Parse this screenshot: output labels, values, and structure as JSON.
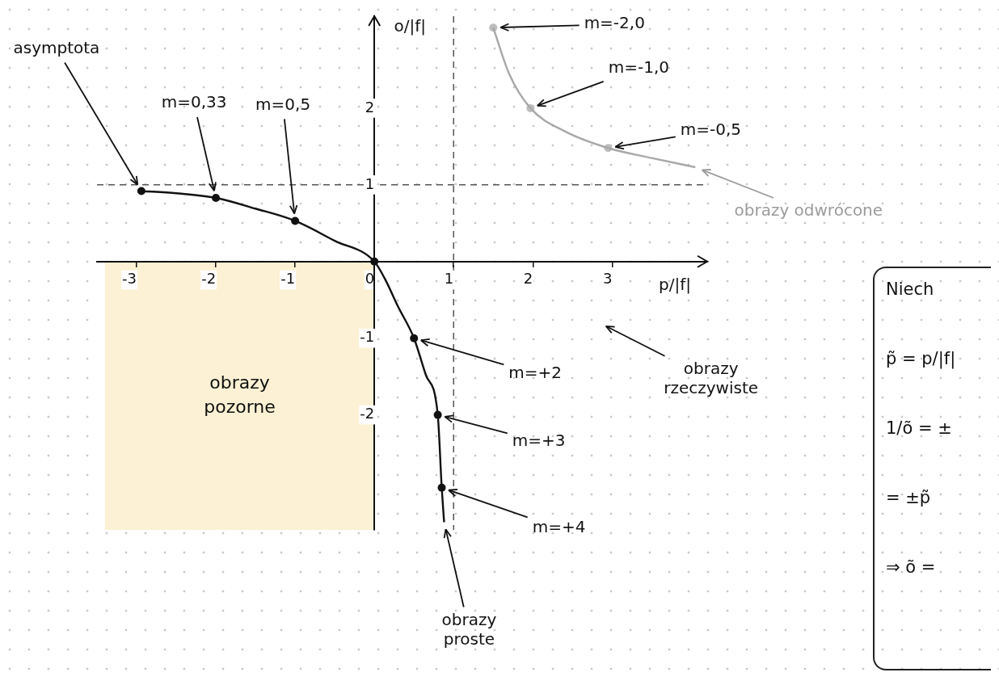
{
  "chart_data": {
    "type": "line",
    "x_label": "p/|f|",
    "y_label": "o/|f|",
    "xlim": [
      -3.5,
      4.2
    ],
    "ylim": [
      -3.5,
      3.2
    ],
    "xticks": [
      -3,
      -2,
      -1,
      0,
      1,
      2,
      3
    ],
    "yticks": [
      -2,
      -1,
      1,
      2
    ],
    "grid": false,
    "series": [
      {
        "type": "line",
        "x": [
          -2.94,
          -2.5,
          -2,
          -1.5,
          -1,
          -0.5,
          0,
          0.13,
          0.3,
          0.5,
          0.65,
          0.8,
          0.85,
          0.88
        ],
        "values": [
          0.92,
          0.89,
          0.83,
          0.69,
          0.53,
          0.27,
          0,
          -0.22,
          -0.59,
          -1.0,
          -1.48,
          -2.0,
          -2.95,
          -3.4
        ],
        "color": "#111111",
        "marker": "none",
        "line_style": "solid"
      },
      {
        "type": "line",
        "x": [
          1.5,
          1.7,
          1.97,
          2.4,
          2.95,
          3.5,
          4.05
        ],
        "values": [
          3.05,
          2.45,
          2.0,
          1.7,
          1.48,
          1.35,
          1.23
        ],
        "color": "#a8a8a8",
        "marker": "none",
        "line_style": "solid"
      },
      {
        "type": "scatter",
        "x": [
          -2.94,
          -2,
          -1,
          0,
          0.5,
          0.8,
          0.85
        ],
        "values": [
          0.92,
          0.83,
          0.53,
          0,
          -1.0,
          -2.0,
          -2.95
        ],
        "color": "#111111",
        "marker": "circle"
      },
      {
        "type": "scatter",
        "x": [
          1.5,
          1.97,
          2.95
        ],
        "values": [
          3.05,
          2.0,
          1.48
        ],
        "color": "#bdbdbd",
        "marker": "circle"
      }
    ],
    "reference_lines": [
      {
        "axis": "y",
        "value": 1,
        "line_style": "dashed",
        "color": "#555555"
      },
      {
        "axis": "x",
        "value": 1,
        "line_style": "dashed",
        "color": "#555555"
      }
    ],
    "regions": [
      {
        "text": "obrazy pozorne",
        "x": [
          -3.4,
          0
        ],
        "y": [
          -3.5,
          0
        ],
        "color": "#fcf1d4"
      }
    ],
    "annotations": [
      {
        "text": "asymptota",
        "x": -2.94,
        "y": 0.92,
        "color": "#111111"
      },
      {
        "text": "m=0,33",
        "x": -2,
        "y": 0.83,
        "color": "#111111"
      },
      {
        "text": "m=0,5",
        "x": -1,
        "y": 0.53,
        "color": "#111111"
      },
      {
        "text": "m=+2",
        "x": 0.5,
        "y": -1.0,
        "color": "#111111"
      },
      {
        "text": "m=+3",
        "x": 0.8,
        "y": -2.0,
        "color": "#111111"
      },
      {
        "text": "m=+4",
        "x": 0.85,
        "y": -2.95,
        "color": "#111111"
      },
      {
        "text": "m=-2,0",
        "x": 1.5,
        "y": 3.05,
        "color": "#111111"
      },
      {
        "text": "m=-1,0",
        "x": 1.97,
        "y": 2.0,
        "color": "#111111"
      },
      {
        "text": "m=-0,5",
        "x": 2.95,
        "y": 1.48,
        "color": "#111111"
      },
      {
        "text": "obrazy odwrócone",
        "x": 4.05,
        "y": 1.23,
        "color": "#9b9b9b"
      },
      {
        "text": "obrazy rzeczywiste",
        "x": 2.84,
        "y": -0.8,
        "color": "#111111"
      },
      {
        "text": "obrazy proste",
        "x": 0.88,
        "y": -3.4,
        "color": "#111111"
      }
    ]
  },
  "notes": [
    "Niech",
    "p̃ = p/|f|",
    "1/õ = ±",
    "= ±p̃",
    "⇒ õ ="
  ]
}
